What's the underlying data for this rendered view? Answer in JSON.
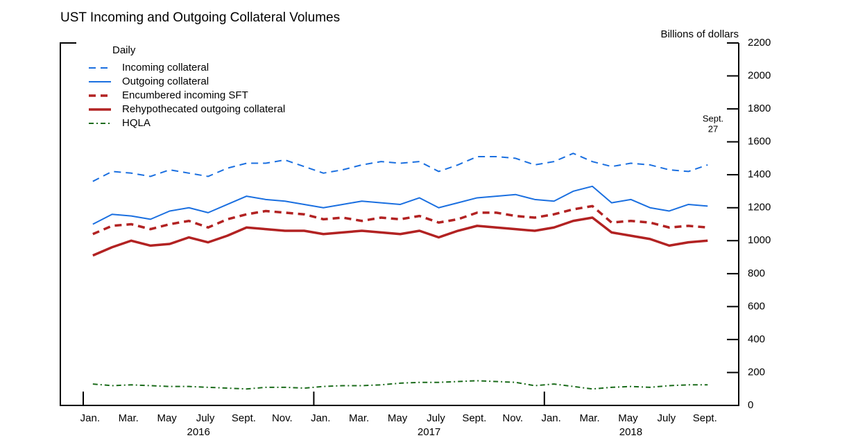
{
  "chart_data": {
    "type": "line",
    "title": "UST Incoming and Outgoing Collateral Volumes",
    "y_axis_label": "Billions of dollars",
    "legend_title": "Daily",
    "annotation": [
      "Sept.",
      "27"
    ],
    "categories": [
      "Jan.",
      null,
      "Mar.",
      null,
      "May",
      null,
      "July",
      null,
      "Sept.",
      null,
      "Nov.",
      null,
      "Jan.",
      null,
      "Mar.",
      null,
      "May",
      null,
      "July",
      null,
      "Sept.",
      null,
      "Nov.",
      null,
      "Jan.",
      null,
      "Mar.",
      null,
      "May",
      null,
      "July",
      null,
      "Sept."
    ],
    "year_labels": [
      "2016",
      "2017",
      "2018"
    ],
    "ylim": [
      0,
      2200
    ],
    "yticks": [
      0,
      200,
      400,
      600,
      800,
      1000,
      1200,
      1400,
      1600,
      1800,
      2000,
      2200
    ],
    "series": [
      {
        "name": "Incoming collateral",
        "color": "#1a6fe0",
        "style": "dashed",
        "width": 2,
        "values": [
          1360,
          1420,
          1410,
          1390,
          1430,
          1410,
          1390,
          1440,
          1470,
          1470,
          1490,
          1450,
          1410,
          1430,
          1460,
          1480,
          1470,
          1480,
          1420,
          1460,
          1510,
          1510,
          1500,
          1460,
          1480,
          1530,
          1480,
          1450,
          1470,
          1460,
          1430,
          1420,
          1460
        ]
      },
      {
        "name": "Outgoing collateral",
        "color": "#1a6fe0",
        "style": "solid",
        "width": 2,
        "values": [
          1100,
          1160,
          1150,
          1130,
          1180,
          1200,
          1170,
          1220,
          1270,
          1250,
          1240,
          1220,
          1200,
          1220,
          1240,
          1230,
          1220,
          1260,
          1200,
          1230,
          1260,
          1270,
          1280,
          1250,
          1240,
          1300,
          1330,
          1230,
          1250,
          1200,
          1180,
          1220,
          1210
        ]
      },
      {
        "name": "Encumbered incoming SFT",
        "color": "#b22222",
        "style": "dashed",
        "width": 3.5,
        "values": [
          1040,
          1090,
          1100,
          1070,
          1100,
          1120,
          1080,
          1130,
          1160,
          1180,
          1170,
          1160,
          1130,
          1140,
          1120,
          1140,
          1130,
          1150,
          1110,
          1130,
          1170,
          1170,
          1150,
          1140,
          1160,
          1190,
          1210,
          1110,
          1120,
          1110,
          1080,
          1090,
          1080
        ]
      },
      {
        "name": "Rehypothecated outgoing collateral",
        "color": "#b22222",
        "style": "solid",
        "width": 3.5,
        "values": [
          910,
          960,
          1000,
          970,
          980,
          1020,
          990,
          1030,
          1080,
          1070,
          1060,
          1060,
          1040,
          1050,
          1060,
          1050,
          1040,
          1060,
          1020,
          1060,
          1090,
          1080,
          1070,
          1060,
          1080,
          1120,
          1140,
          1050,
          1030,
          1010,
          970,
          990,
          1000
        ]
      },
      {
        "name": "HQLA",
        "color": "#1a6b1a",
        "style": "dashdot",
        "width": 2,
        "values": [
          130,
          120,
          125,
          120,
          115,
          115,
          110,
          105,
          100,
          110,
          110,
          105,
          115,
          120,
          120,
          125,
          135,
          140,
          140,
          145,
          150,
          145,
          140,
          120,
          130,
          115,
          100,
          110,
          115,
          110,
          120,
          125,
          125
        ]
      }
    ]
  }
}
